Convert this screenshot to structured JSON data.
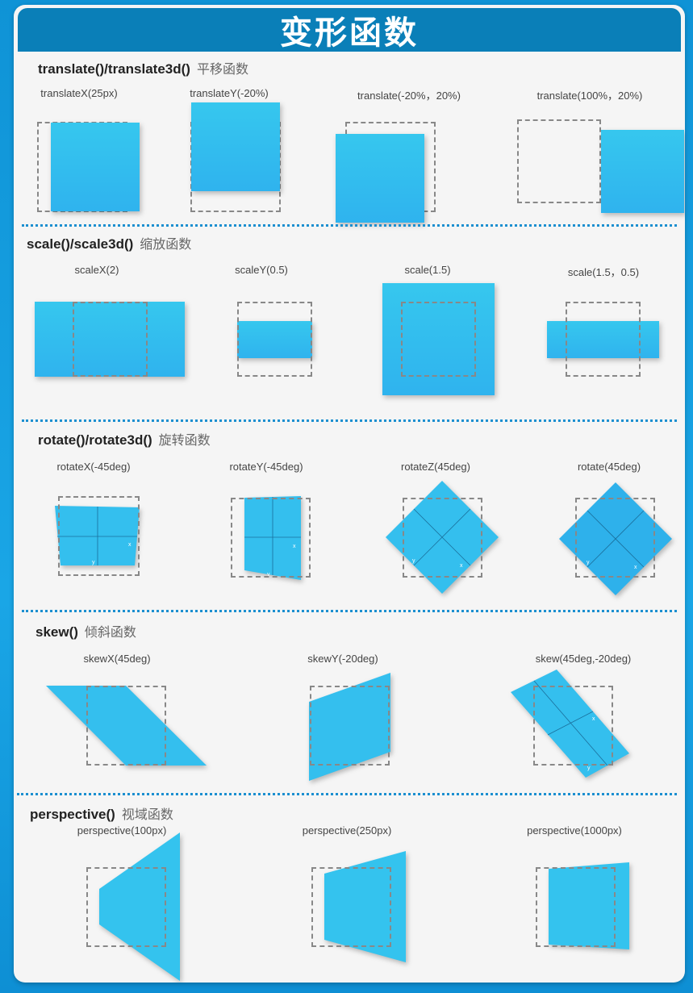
{
  "title": "变形函数",
  "sections": [
    {
      "fn": "translate()/translate3d()",
      "cn": "平移函数",
      "examples": [
        "translateX(25px)",
        "translateY(-20%)",
        "translate(-20%，20%)",
        "translate(100%，20%)"
      ]
    },
    {
      "fn": "scale()/scale3d()",
      "cn": "缩放函数",
      "examples": [
        "scaleX(2)",
        "scaleY(0.5)",
        "scale(1.5)",
        "scale(1.5，0.5)"
      ]
    },
    {
      "fn": "rotate()/rotate3d()",
      "cn": "旋转函数",
      "examples": [
        "rotateX(-45deg)",
        "rotateY(-45deg)",
        "rotateZ(45deg)",
        "rotate(45deg)"
      ]
    },
    {
      "fn": "skew()",
      "cn": "倾斜函数",
      "examples": [
        "skewX(45deg)",
        "skewY(-20deg)",
        "skew(45deg,-20deg)"
      ]
    },
    {
      "fn": "perspective()",
      "cn": "视域函数",
      "examples": [
        "perspective(100px)",
        "perspective(250px)",
        "perspective(1000px)"
      ]
    }
  ],
  "axis_labels": {
    "x": "x",
    "y": "y"
  },
  "colors": {
    "accent": "#0a7fb8",
    "shape": "#33bdee",
    "divider": "#1b8fd0"
  }
}
